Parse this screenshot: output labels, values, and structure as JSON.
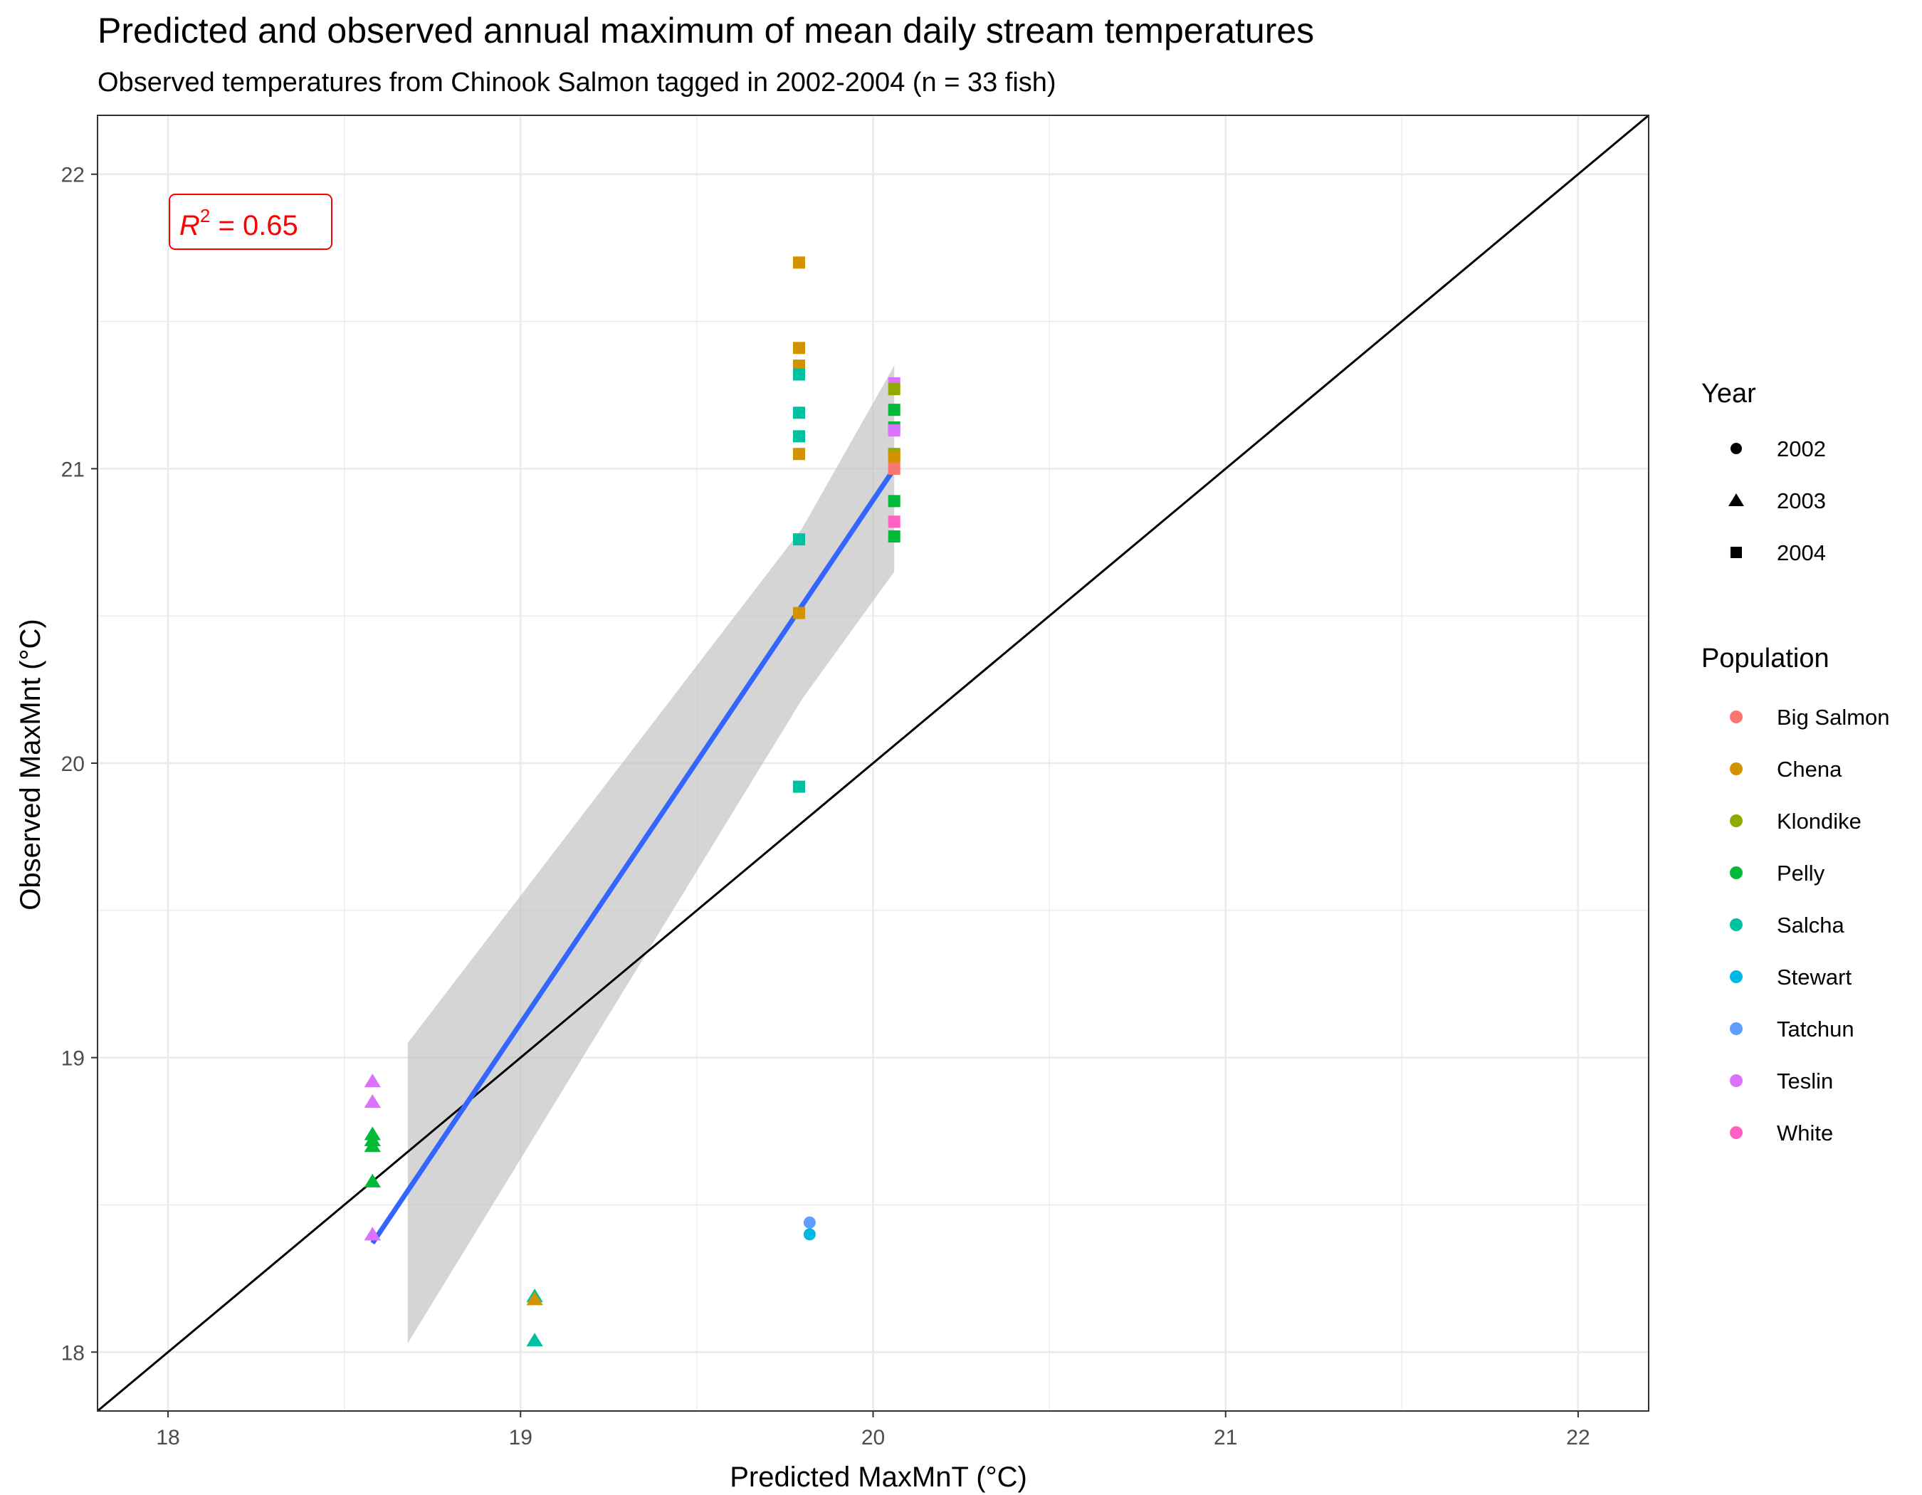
{
  "chart_data": {
    "type": "scatter",
    "title": "Predicted and observed annual maximum of mean daily stream temperatures",
    "subtitle": "Observed temperatures from Chinook Salmon tagged in 2002-2004 (n = 33 fish)",
    "xlabel": "Predicted MaxMnT (°C)",
    "ylabel": "Observed MaxMnt (°C)",
    "xlim": [
      17.8,
      22.2
    ],
    "ylim": [
      17.8,
      22.2
    ],
    "xticks": [
      18,
      19,
      20,
      21,
      22
    ],
    "yticks": [
      18,
      19,
      20,
      21,
      22
    ],
    "xtick_labels": [
      "18",
      "19",
      "20",
      "21",
      "22"
    ],
    "ytick_labels": [
      "18",
      "19",
      "20",
      "21",
      "22"
    ],
    "grid": true,
    "annotation": {
      "prefix": "R",
      "superscript": "2",
      "text": " = 0.65"
    },
    "colors": {
      "Big Salmon": "#F8766D",
      "Chena": "#D39200",
      "Klondike": "#93AA00",
      "Pelly": "#00BA38",
      "Salcha": "#00C19F",
      "Stewart": "#00B9E3",
      "Tatchun": "#619CFF",
      "Teslin": "#DB72FB",
      "White": "#FF61C3",
      "fit_line": "#3366FF",
      "ribbon": "#bfbfbf",
      "identity_line": "#000000",
      "r2_text": "#ff0000"
    },
    "legend": {
      "placement": "right",
      "year": {
        "title": "Year",
        "items": [
          {
            "label": "2002",
            "shape": "circle"
          },
          {
            "label": "2003",
            "shape": "triangle"
          },
          {
            "label": "2004",
            "shape": "square"
          }
        ]
      },
      "population": {
        "title": "Population",
        "items": [
          "Big Salmon",
          "Chena",
          "Klondike",
          "Pelly",
          "Salcha",
          "Stewart",
          "Tatchun",
          "Teslin",
          "White"
        ]
      }
    },
    "reference_line": {
      "slope": 1,
      "intercept": 0,
      "label": ""
    },
    "fit": {
      "method": "linear",
      "x": [
        18.58,
        20.06
      ],
      "y": [
        18.37,
        21.0
      ]
    },
    "confidence_band": {
      "x": [
        18.68,
        19.8,
        20.06
      ],
      "upper": [
        19.05,
        20.8,
        21.35
      ],
      "lower": [
        18.03,
        20.22,
        20.65
      ]
    },
    "points": [
      {
        "x": 19.79,
        "y": 21.7,
        "year": "2004",
        "population": "Chena"
      },
      {
        "x": 19.79,
        "y": 21.41,
        "year": "2004",
        "population": "Chena"
      },
      {
        "x": 19.79,
        "y": 21.35,
        "year": "2004",
        "population": "Chena"
      },
      {
        "x": 19.79,
        "y": 21.32,
        "year": "2004",
        "population": "Salcha"
      },
      {
        "x": 19.79,
        "y": 21.19,
        "year": "2004",
        "population": "Salcha"
      },
      {
        "x": 19.79,
        "y": 21.11,
        "year": "2004",
        "population": "Salcha"
      },
      {
        "x": 19.79,
        "y": 21.05,
        "year": "2004",
        "population": "Chena"
      },
      {
        "x": 19.79,
        "y": 20.76,
        "year": "2004",
        "population": "Salcha"
      },
      {
        "x": 19.79,
        "y": 20.51,
        "year": "2004",
        "population": "Chena"
      },
      {
        "x": 19.79,
        "y": 19.92,
        "year": "2004",
        "population": "Salcha"
      },
      {
        "x": 20.06,
        "y": 21.29,
        "year": "2004",
        "population": "Teslin"
      },
      {
        "x": 20.06,
        "y": 21.27,
        "year": "2004",
        "population": "Klondike"
      },
      {
        "x": 20.06,
        "y": 21.2,
        "year": "2004",
        "population": "Pelly"
      },
      {
        "x": 20.06,
        "y": 21.14,
        "year": "2004",
        "population": "Pelly"
      },
      {
        "x": 20.06,
        "y": 21.13,
        "year": "2004",
        "population": "Teslin"
      },
      {
        "x": 20.06,
        "y": 21.05,
        "year": "2004",
        "population": "Klondike"
      },
      {
        "x": 20.06,
        "y": 21.04,
        "year": "2004",
        "population": "Chena"
      },
      {
        "x": 20.06,
        "y": 21.0,
        "year": "2004",
        "population": "Big Salmon"
      },
      {
        "x": 20.06,
        "y": 20.89,
        "year": "2004",
        "population": "Pelly"
      },
      {
        "x": 20.06,
        "y": 20.82,
        "year": "2004",
        "population": "White"
      },
      {
        "x": 20.06,
        "y": 20.77,
        "year": "2004",
        "population": "Pelly"
      },
      {
        "x": 18.58,
        "y": 18.92,
        "year": "2003",
        "population": "Teslin"
      },
      {
        "x": 18.58,
        "y": 18.85,
        "year": "2003",
        "population": "Teslin"
      },
      {
        "x": 18.58,
        "y": 18.74,
        "year": "2003",
        "population": "Pelly"
      },
      {
        "x": 18.58,
        "y": 18.72,
        "year": "2003",
        "population": "Pelly"
      },
      {
        "x": 18.58,
        "y": 18.7,
        "year": "2003",
        "population": "Pelly"
      },
      {
        "x": 18.58,
        "y": 18.58,
        "year": "2003",
        "population": "Pelly"
      },
      {
        "x": 18.58,
        "y": 18.4,
        "year": "2003",
        "population": "Teslin"
      },
      {
        "x": 19.04,
        "y": 18.19,
        "year": "2003",
        "population": "Salcha"
      },
      {
        "x": 19.04,
        "y": 18.18,
        "year": "2003",
        "population": "Chena"
      },
      {
        "x": 19.04,
        "y": 18.04,
        "year": "2003",
        "population": "Salcha"
      },
      {
        "x": 19.82,
        "y": 18.44,
        "year": "2002",
        "population": "Tatchun"
      },
      {
        "x": 19.82,
        "y": 18.4,
        "year": "2002",
        "population": "Stewart"
      }
    ]
  }
}
